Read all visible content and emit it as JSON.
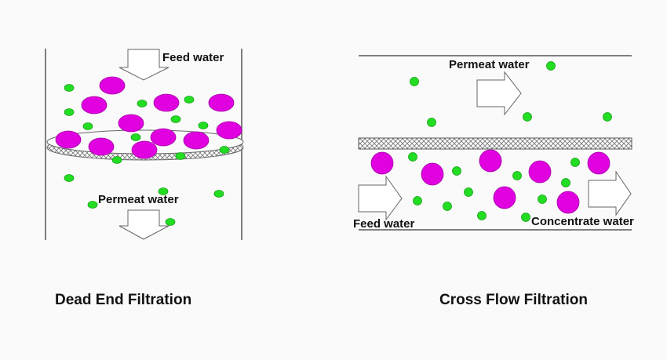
{
  "dead_end": {
    "title": "Dead End Filtration",
    "feed_label": "Feed water",
    "permeate_label": "Permeat water"
  },
  "cross_flow": {
    "title": "Cross Flow Filtration",
    "permeate_label": "Permeat water",
    "feed_label": "Feed water",
    "concentrate_label": "Concentrate water"
  },
  "colors": {
    "large_particle": "#e000e0",
    "small_particle": "#22dd22",
    "line": "#555555"
  }
}
